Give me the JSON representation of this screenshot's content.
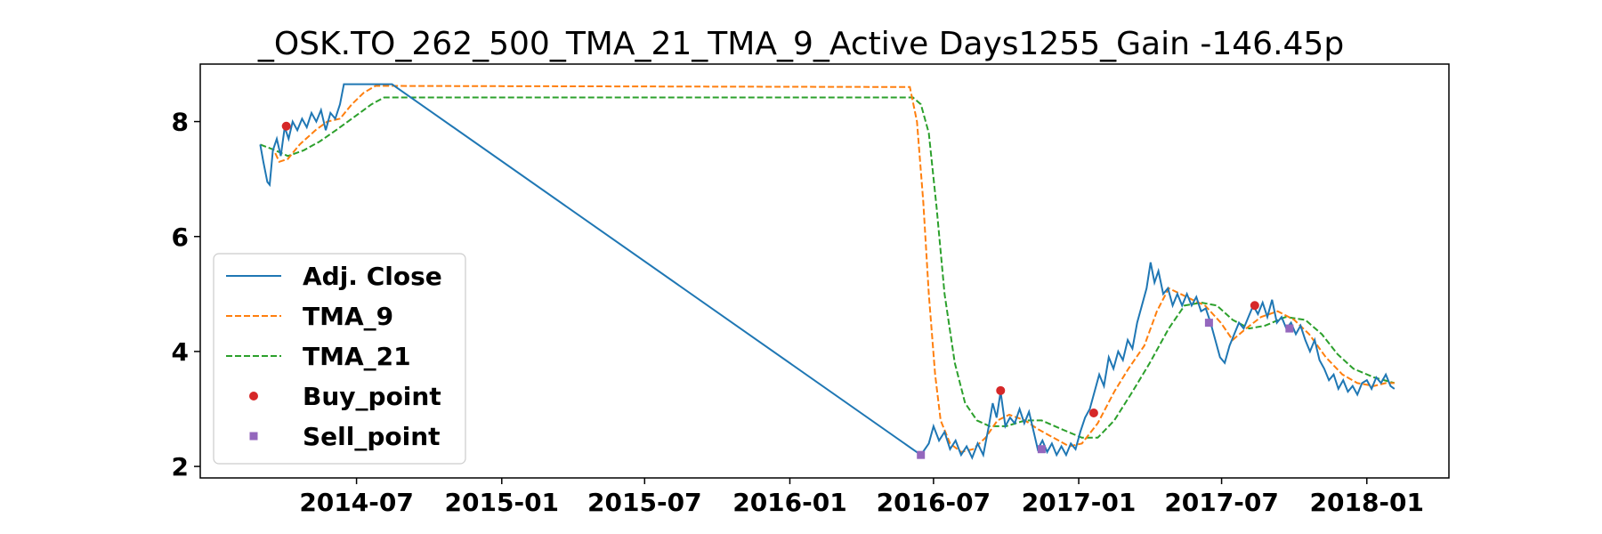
{
  "chart_data": {
    "type": "line",
    "title": "_OSK.TO_262_500_TMA_21_TMA_9_Active Days1255_Gain -146.45p",
    "xlabel": "",
    "ylabel": "",
    "x_axis_type": "date",
    "xlim": [
      "2013-12-15",
      "2018-04-15"
    ],
    "ylim": [
      1.8,
      9.0
    ],
    "x_ticks": [
      "2014-07",
      "2015-01",
      "2015-07",
      "2016-01",
      "2016-07",
      "2017-01",
      "2017-07",
      "2018-01"
    ],
    "y_ticks": [
      2,
      4,
      6,
      8
    ],
    "grid": false,
    "legend_position": "center-left",
    "colors": {
      "adj_close": "#1f77b4",
      "tma_9": "#ff7f0e",
      "tma_21": "#2ca02c",
      "buy": "#d62728",
      "sell": "#9467bd"
    },
    "series": [
      {
        "name": "Adj. Close",
        "style": "solid",
        "points": [
          [
            "2014-03-01",
            7.6
          ],
          [
            "2014-03-05",
            7.3
          ],
          [
            "2014-03-10",
            6.95
          ],
          [
            "2014-03-13",
            6.9
          ],
          [
            "2014-03-17",
            7.5
          ],
          [
            "2014-03-22",
            7.7
          ],
          [
            "2014-03-27",
            7.4
          ],
          [
            "2014-04-01",
            7.9
          ],
          [
            "2014-04-06",
            7.7
          ],
          [
            "2014-04-11",
            8.0
          ],
          [
            "2014-04-17",
            7.85
          ],
          [
            "2014-04-23",
            8.05
          ],
          [
            "2014-04-29",
            7.9
          ],
          [
            "2014-05-05",
            8.15
          ],
          [
            "2014-05-11",
            8.0
          ],
          [
            "2014-05-17",
            8.2
          ],
          [
            "2014-05-23",
            7.85
          ],
          [
            "2014-05-29",
            8.15
          ],
          [
            "2014-06-04",
            8.05
          ],
          [
            "2014-06-10",
            8.3
          ],
          [
            "2014-06-15",
            8.65
          ],
          [
            "2014-08-15",
            8.65
          ],
          [
            "2014-08-20",
            8.6
          ],
          [
            "2016-06-15",
            2.2
          ],
          [
            "2016-06-25",
            2.4
          ],
          [
            "2016-07-01",
            2.7
          ],
          [
            "2016-07-08",
            2.45
          ],
          [
            "2016-07-15",
            2.6
          ],
          [
            "2016-07-22",
            2.3
          ],
          [
            "2016-07-29",
            2.45
          ],
          [
            "2016-08-05",
            2.2
          ],
          [
            "2016-08-12",
            2.35
          ],
          [
            "2016-08-19",
            2.15
          ],
          [
            "2016-08-26",
            2.4
          ],
          [
            "2016-09-02",
            2.2
          ],
          [
            "2016-09-09",
            2.7
          ],
          [
            "2016-09-14",
            3.1
          ],
          [
            "2016-09-19",
            2.85
          ],
          [
            "2016-09-24",
            3.3
          ],
          [
            "2016-09-30",
            2.7
          ],
          [
            "2016-10-06",
            2.85
          ],
          [
            "2016-10-12",
            2.75
          ],
          [
            "2016-10-18",
            3.0
          ],
          [
            "2016-10-24",
            2.75
          ],
          [
            "2016-10-30",
            2.95
          ],
          [
            "2016-11-05",
            2.6
          ],
          [
            "2016-11-10",
            2.3
          ],
          [
            "2016-11-16",
            2.45
          ],
          [
            "2016-11-22",
            2.25
          ],
          [
            "2016-11-28",
            2.4
          ],
          [
            "2016-12-04",
            2.2
          ],
          [
            "2016-12-10",
            2.35
          ],
          [
            "2016-12-16",
            2.2
          ],
          [
            "2016-12-22",
            2.4
          ],
          [
            "2016-12-28",
            2.3
          ],
          [
            "2017-01-03",
            2.6
          ],
          [
            "2017-01-09",
            2.85
          ],
          [
            "2017-01-15",
            3.0
          ],
          [
            "2017-01-21",
            3.3
          ],
          [
            "2017-01-27",
            3.6
          ],
          [
            "2017-02-02",
            3.4
          ],
          [
            "2017-02-08",
            3.9
          ],
          [
            "2017-02-14",
            3.7
          ],
          [
            "2017-02-20",
            4.0
          ],
          [
            "2017-02-26",
            3.85
          ],
          [
            "2017-03-04",
            4.2
          ],
          [
            "2017-03-10",
            4.05
          ],
          [
            "2017-03-16",
            4.5
          ],
          [
            "2017-03-22",
            4.8
          ],
          [
            "2017-03-28",
            5.1
          ],
          [
            "2017-04-02",
            5.55
          ],
          [
            "2017-04-07",
            5.2
          ],
          [
            "2017-04-12",
            5.4
          ],
          [
            "2017-04-18",
            5.0
          ],
          [
            "2017-04-24",
            5.1
          ],
          [
            "2017-04-30",
            4.8
          ],
          [
            "2017-05-06",
            5.0
          ],
          [
            "2017-05-12",
            4.8
          ],
          [
            "2017-05-18",
            5.0
          ],
          [
            "2017-05-24",
            4.8
          ],
          [
            "2017-05-30",
            4.95
          ],
          [
            "2017-06-05",
            4.7
          ],
          [
            "2017-06-11",
            4.75
          ],
          [
            "2017-06-17",
            4.5
          ],
          [
            "2017-06-23",
            4.2
          ],
          [
            "2017-06-29",
            3.9
          ],
          [
            "2017-07-05",
            3.8
          ],
          [
            "2017-07-11",
            4.1
          ],
          [
            "2017-07-17",
            4.3
          ],
          [
            "2017-07-23",
            4.5
          ],
          [
            "2017-07-29",
            4.4
          ],
          [
            "2017-08-04",
            4.6
          ],
          [
            "2017-08-10",
            4.8
          ],
          [
            "2017-08-16",
            4.65
          ],
          [
            "2017-08-22",
            4.85
          ],
          [
            "2017-08-28",
            4.6
          ],
          [
            "2017-09-03",
            4.9
          ],
          [
            "2017-09-09",
            4.5
          ],
          [
            "2017-09-15",
            4.6
          ],
          [
            "2017-09-21",
            4.4
          ],
          [
            "2017-09-27",
            4.5
          ],
          [
            "2017-10-03",
            4.3
          ],
          [
            "2017-10-09",
            4.45
          ],
          [
            "2017-10-15",
            4.2
          ],
          [
            "2017-10-21",
            4.0
          ],
          [
            "2017-10-27",
            4.2
          ],
          [
            "2017-11-02",
            3.85
          ],
          [
            "2017-11-08",
            3.7
          ],
          [
            "2017-11-14",
            3.5
          ],
          [
            "2017-11-20",
            3.6
          ],
          [
            "2017-11-26",
            3.35
          ],
          [
            "2017-12-02",
            3.5
          ],
          [
            "2017-12-08",
            3.3
          ],
          [
            "2017-12-14",
            3.4
          ],
          [
            "2017-12-20",
            3.25
          ],
          [
            "2017-12-26",
            3.45
          ],
          [
            "2018-01-01",
            3.5
          ],
          [
            "2018-01-07",
            3.35
          ],
          [
            "2018-01-13",
            3.55
          ],
          [
            "2018-01-19",
            3.45
          ],
          [
            "2018-01-25",
            3.6
          ],
          [
            "2018-01-31",
            3.4
          ],
          [
            "2018-02-05",
            3.35
          ]
        ]
      },
      {
        "name": "TMA_9",
        "style": "dashed",
        "points": [
          [
            "2014-03-20",
            7.45
          ],
          [
            "2014-03-25",
            7.3
          ],
          [
            "2014-04-05",
            7.35
          ],
          [
            "2014-04-20",
            7.6
          ],
          [
            "2014-05-10",
            7.85
          ],
          [
            "2014-05-25",
            8.0
          ],
          [
            "2014-06-10",
            8.05
          ],
          [
            "2014-06-25",
            8.3
          ],
          [
            "2014-07-10",
            8.5
          ],
          [
            "2014-07-25",
            8.62
          ],
          [
            "2016-06-01",
            8.6
          ],
          [
            "2016-06-10",
            8.0
          ],
          [
            "2016-06-18",
            6.6
          ],
          [
            "2016-06-25",
            5.0
          ],
          [
            "2016-07-03",
            3.6
          ],
          [
            "2016-07-10",
            2.8
          ],
          [
            "2016-07-22",
            2.4
          ],
          [
            "2016-08-05",
            2.25
          ],
          [
            "2016-08-20",
            2.3
          ],
          [
            "2016-09-05",
            2.5
          ],
          [
            "2016-09-20",
            2.8
          ],
          [
            "2016-10-05",
            2.9
          ],
          [
            "2016-10-25",
            2.8
          ],
          [
            "2016-11-10",
            2.65
          ],
          [
            "2016-11-30",
            2.5
          ],
          [
            "2016-12-20",
            2.35
          ],
          [
            "2017-01-05",
            2.4
          ],
          [
            "2017-01-25",
            2.75
          ],
          [
            "2017-02-15",
            3.3
          ],
          [
            "2017-03-05",
            3.7
          ],
          [
            "2017-03-25",
            4.1
          ],
          [
            "2017-04-10",
            4.7
          ],
          [
            "2017-04-25",
            5.1
          ],
          [
            "2017-05-10",
            5.0
          ],
          [
            "2017-05-25",
            4.9
          ],
          [
            "2017-06-10",
            4.8
          ],
          [
            "2017-06-30",
            4.5
          ],
          [
            "2017-07-15",
            4.2
          ],
          [
            "2017-08-01",
            4.4
          ],
          [
            "2017-08-20",
            4.6
          ],
          [
            "2017-09-10",
            4.7
          ],
          [
            "2017-10-01",
            4.55
          ],
          [
            "2017-10-20",
            4.3
          ],
          [
            "2017-11-10",
            3.9
          ],
          [
            "2017-12-01",
            3.6
          ],
          [
            "2017-12-20",
            3.45
          ],
          [
            "2018-01-10",
            3.4
          ],
          [
            "2018-01-25",
            3.45
          ],
          [
            "2018-02-05",
            3.45
          ]
        ]
      },
      {
        "name": "TMA_21",
        "style": "dashed",
        "points": [
          [
            "2014-03-01",
            7.6
          ],
          [
            "2014-03-20",
            7.5
          ],
          [
            "2014-04-05",
            7.4
          ],
          [
            "2014-04-25",
            7.5
          ],
          [
            "2014-05-15",
            7.65
          ],
          [
            "2014-06-05",
            7.85
          ],
          [
            "2014-06-25",
            8.05
          ],
          [
            "2014-07-20",
            8.3
          ],
          [
            "2014-08-05",
            8.42
          ],
          [
            "2016-06-05",
            8.42
          ],
          [
            "2016-06-15",
            8.3
          ],
          [
            "2016-06-25",
            7.8
          ],
          [
            "2016-07-05",
            6.5
          ],
          [
            "2016-07-15",
            5.0
          ],
          [
            "2016-07-28",
            3.8
          ],
          [
            "2016-08-10",
            3.1
          ],
          [
            "2016-08-25",
            2.8
          ],
          [
            "2016-09-10",
            2.7
          ],
          [
            "2016-10-01",
            2.7
          ],
          [
            "2016-10-25",
            2.8
          ],
          [
            "2016-11-15",
            2.8
          ],
          [
            "2016-12-10",
            2.65
          ],
          [
            "2017-01-05",
            2.5
          ],
          [
            "2017-01-25",
            2.5
          ],
          [
            "2017-02-15",
            2.8
          ],
          [
            "2017-03-10",
            3.3
          ],
          [
            "2017-04-01",
            3.8
          ],
          [
            "2017-04-25",
            4.4
          ],
          [
            "2017-05-15",
            4.8
          ],
          [
            "2017-06-05",
            4.85
          ],
          [
            "2017-06-25",
            4.8
          ],
          [
            "2017-07-15",
            4.55
          ],
          [
            "2017-08-05",
            4.4
          ],
          [
            "2017-08-25",
            4.45
          ],
          [
            "2017-09-20",
            4.6
          ],
          [
            "2017-10-15",
            4.55
          ],
          [
            "2017-11-05",
            4.3
          ],
          [
            "2017-11-25",
            3.95
          ],
          [
            "2017-12-15",
            3.7
          ],
          [
            "2018-01-10",
            3.55
          ],
          [
            "2018-02-05",
            3.45
          ]
        ]
      },
      {
        "name": "Buy_point",
        "style": "marker-circle",
        "points": [
          [
            "2014-04-03",
            7.92
          ],
          [
            "2016-09-24",
            3.32
          ],
          [
            "2017-01-20",
            2.93
          ],
          [
            "2017-08-12",
            4.8
          ]
        ]
      },
      {
        "name": "Sell_point",
        "style": "marker-square",
        "points": [
          [
            "2016-06-15",
            2.2
          ],
          [
            "2016-11-15",
            2.3
          ],
          [
            "2017-06-15",
            4.5
          ],
          [
            "2017-09-25",
            4.4
          ]
        ]
      }
    ]
  }
}
